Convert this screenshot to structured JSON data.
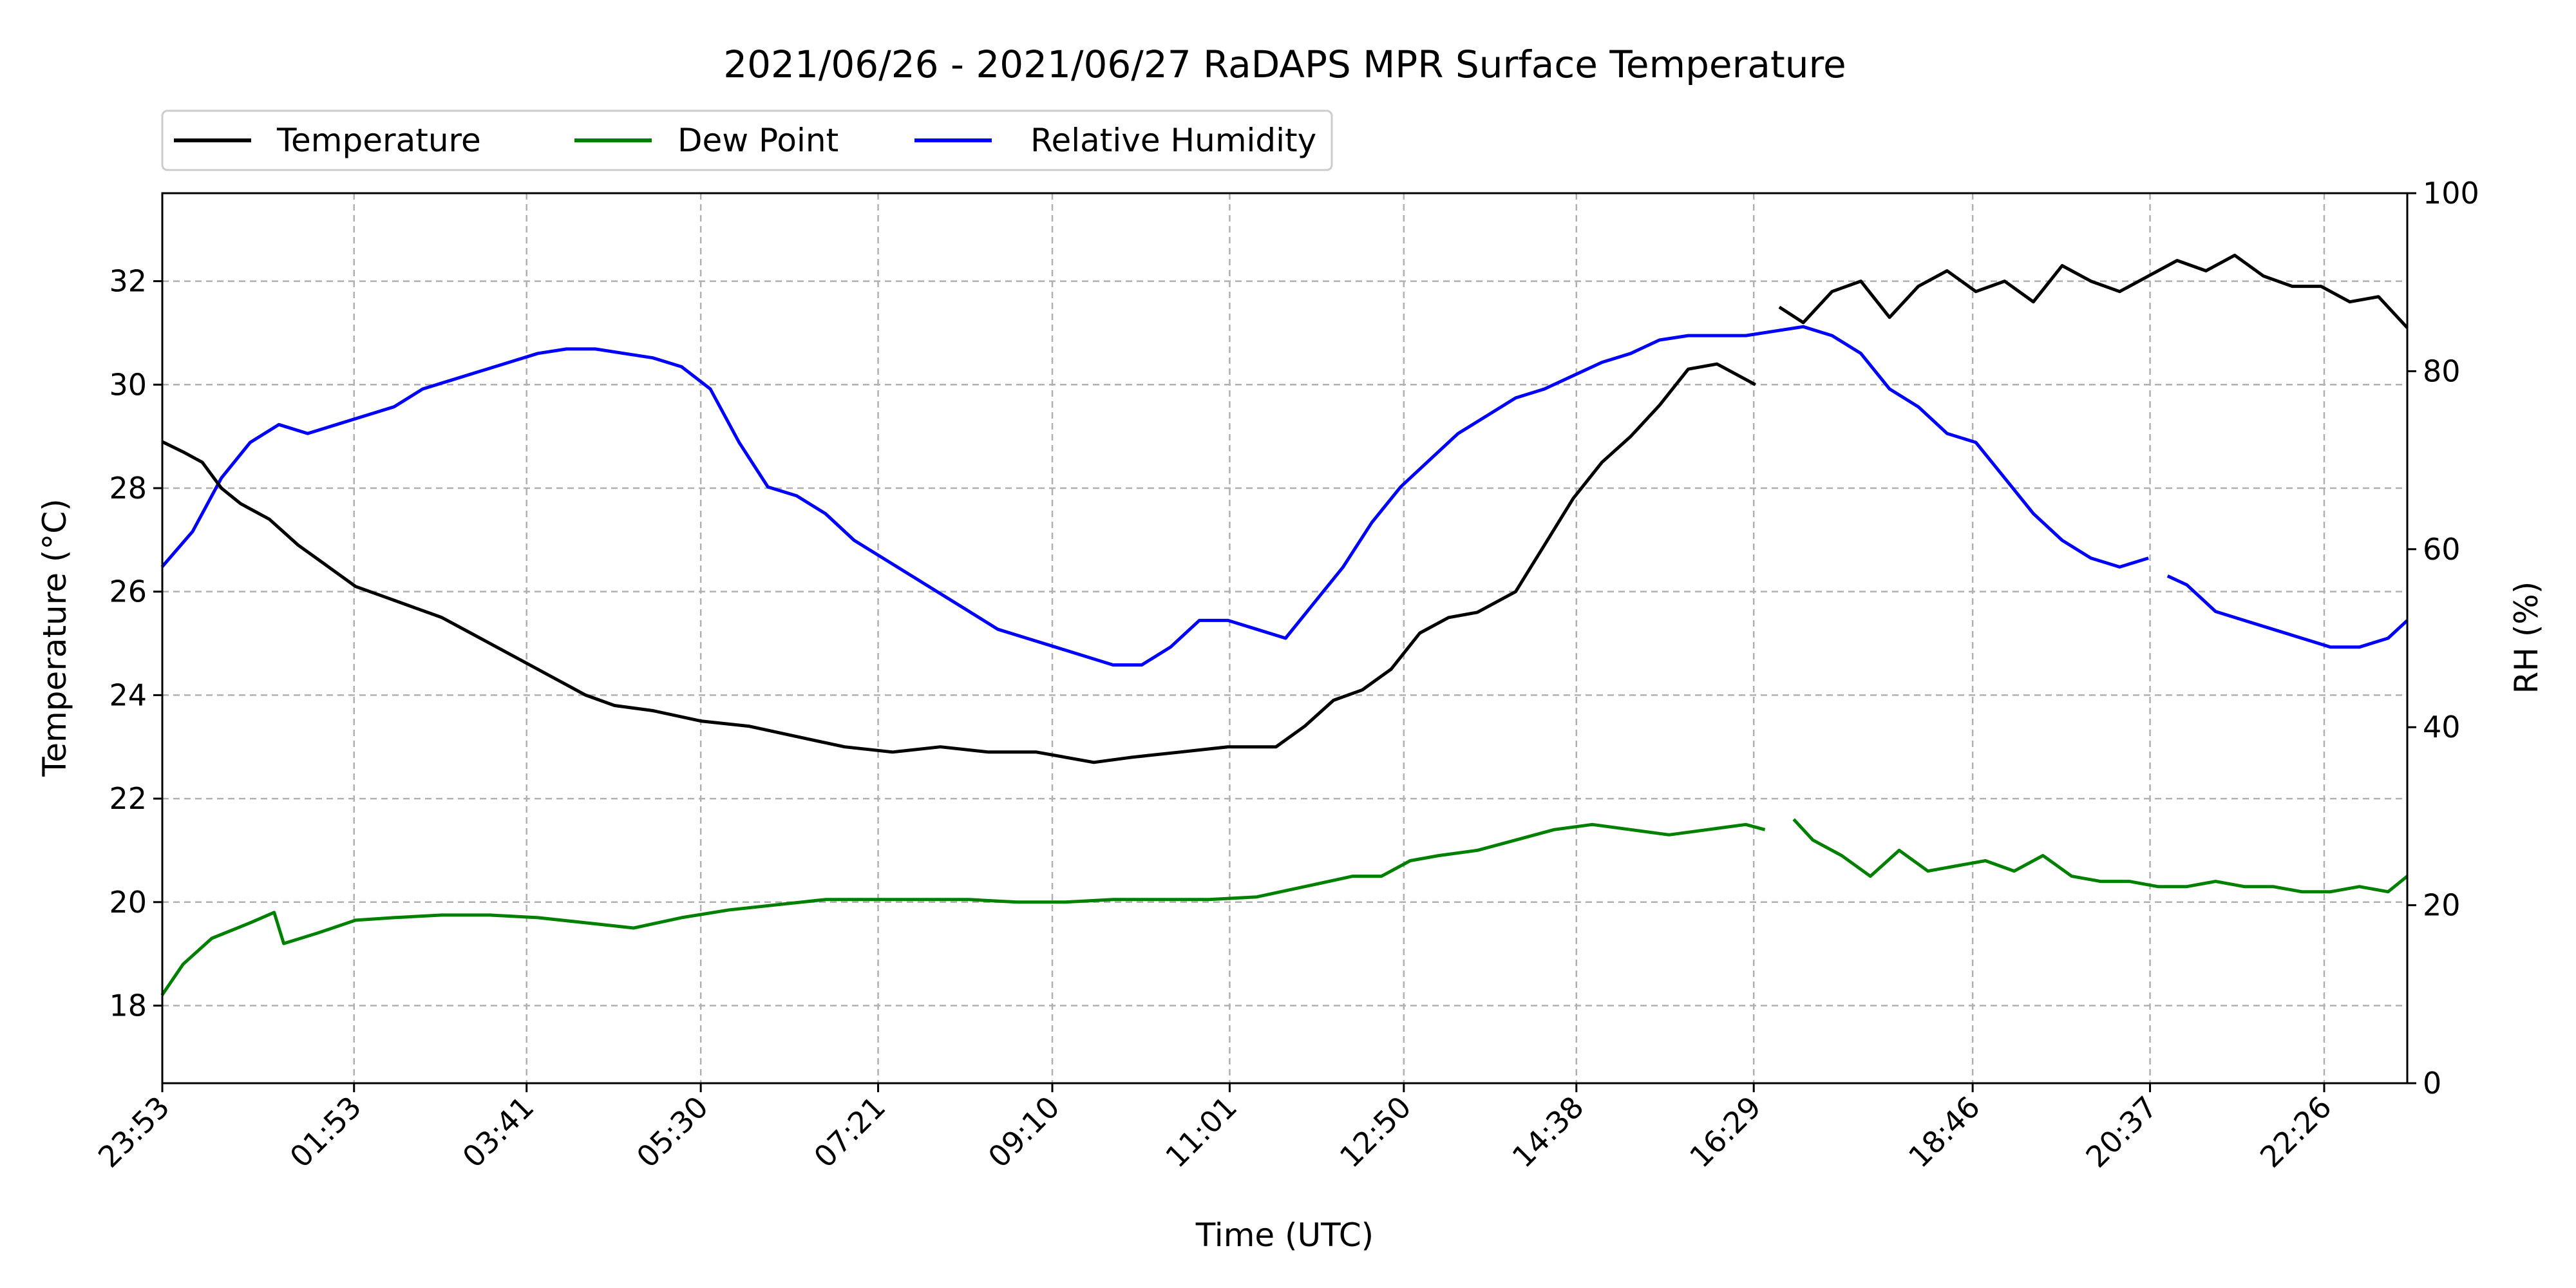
{
  "chart_data": {
    "type": "line",
    "title": "2021/06/26 - 2021/06/27 RaDAPS MPR Surface Temperature",
    "xlabel": "Time (UTC)",
    "ylabel": "Temperature ($^\\circ$C)",
    "y2label": "RH (%)",
    "x_ticks": [
      "23:53",
      "01:53",
      "03:41",
      "05:30",
      "07:21",
      "09:10",
      "11:01",
      "12:50",
      "14:38",
      "16:29",
      "18:46",
      "20:37",
      "22:26"
    ],
    "x_tick_hours": [
      -0.1167,
      1.8833,
      3.6833,
      5.5,
      7.35,
      9.1667,
      11.0167,
      12.8333,
      14.6333,
      16.4833,
      18.7667,
      20.6167,
      22.4333
    ],
    "xlim_hours": [
      -0.1167,
      23.3
    ],
    "ylim": [
      16.5,
      33.7
    ],
    "y_ticks": [
      18,
      20,
      22,
      24,
      26,
      28,
      30,
      32
    ],
    "y2lim": [
      0,
      100
    ],
    "y2_ticks": [
      0,
      20,
      40,
      60,
      80,
      100
    ],
    "grid": true,
    "legend": "top-left, above plot",
    "series": [
      {
        "name": "Temperature",
        "axis": "left",
        "color": "#000000",
        "x_hours": [
          -0.12,
          0.1,
          0.3,
          0.5,
          0.7,
          1.0,
          1.3,
          1.6,
          1.9,
          2.2,
          2.5,
          2.8,
          3.1,
          3.4,
          3.7,
          4.0,
          4.3,
          4.6,
          5.0,
          5.5,
          6.0,
          6.5,
          7.0,
          7.5,
          8.0,
          8.5,
          9.0,
          9.3,
          9.6,
          10.0,
          10.5,
          11.0,
          11.5,
          11.8,
          12.1,
          12.4,
          12.7,
          13.0,
          13.3,
          13.6,
          14.0,
          14.3,
          14.6,
          14.9,
          15.2,
          15.5,
          15.8,
          16.1,
          16.3,
          16.5
        ],
        "values": [
          28.9,
          28.7,
          28.5,
          28.0,
          27.7,
          27.4,
          26.9,
          26.5,
          26.1,
          25.9,
          25.7,
          25.5,
          25.2,
          24.9,
          24.6,
          24.3,
          24.0,
          23.8,
          23.7,
          23.5,
          23.4,
          23.2,
          23.0,
          22.9,
          23.0,
          22.9,
          22.9,
          22.8,
          22.7,
          22.8,
          22.9,
          23.0,
          23.0,
          23.4,
          23.9,
          24.1,
          24.5,
          25.2,
          25.5,
          25.6,
          26.0,
          26.9,
          27.8,
          28.5,
          29.0,
          29.6,
          30.3,
          30.4,
          30.2,
          30.0
        ],
        "segment2_x_hours": [
          16.75,
          17.0,
          17.3,
          17.6,
          17.9,
          18.2,
          18.5,
          18.8,
          19.1,
          19.4,
          19.7,
          20.0,
          20.3,
          20.6,
          20.9,
          21.2,
          21.5,
          21.8,
          22.1,
          22.4,
          22.7,
          23.0,
          23.3
        ],
        "segment2_values": [
          31.5,
          31.2,
          31.8,
          32.0,
          31.3,
          31.9,
          32.2,
          31.8,
          32.0,
          31.6,
          32.3,
          32.0,
          31.8,
          32.1,
          32.4,
          32.2,
          32.5,
          32.1,
          31.9,
          31.9,
          31.6,
          31.7,
          31.1
        ]
      },
      {
        "name": "Dew Point",
        "axis": "left",
        "color": "#008000",
        "x_hours": [
          -0.12,
          0.1,
          0.4,
          0.8,
          1.05,
          1.15,
          1.5,
          1.9,
          2.3,
          2.8,
          3.3,
          3.8,
          4.3,
          4.8,
          5.3,
          5.8,
          6.3,
          6.8,
          7.3,
          7.8,
          8.3,
          8.8,
          9.3,
          9.8,
          10.3,
          10.8,
          11.3,
          11.8,
          12.3,
          12.6,
          12.9,
          13.2,
          13.6,
          14.0,
          14.4,
          14.8,
          15.2,
          15.6,
          16.0,
          16.4,
          16.6
        ],
        "values": [
          18.2,
          18.8,
          19.3,
          19.6,
          19.8,
          19.2,
          19.4,
          19.65,
          19.7,
          19.75,
          19.75,
          19.7,
          19.6,
          19.5,
          19.7,
          19.85,
          19.95,
          20.05,
          20.05,
          20.05,
          20.05,
          20.0,
          20.0,
          20.05,
          20.05,
          20.05,
          20.1,
          20.3,
          20.5,
          20.5,
          20.8,
          20.9,
          21.0,
          21.2,
          21.4,
          21.5,
          21.4,
          21.3,
          21.4,
          21.5,
          21.4
        ],
        "segment2_x_hours": [
          16.9,
          17.1,
          17.4,
          17.7,
          18.0,
          18.3,
          18.6,
          18.9,
          19.2,
          19.5,
          19.8,
          20.1,
          20.4,
          20.7,
          21.0,
          21.3,
          21.6,
          21.9,
          22.2,
          22.5,
          22.8,
          23.1,
          23.3
        ],
        "segment2_values": [
          21.6,
          21.2,
          20.9,
          20.5,
          21.0,
          20.6,
          20.7,
          20.8,
          20.6,
          20.9,
          20.5,
          20.4,
          20.4,
          20.3,
          20.3,
          20.4,
          20.3,
          20.3,
          20.2,
          20.2,
          20.3,
          20.2,
          20.5
        ]
      },
      {
        "name": "Relative Humidity",
        "axis": "right",
        "color": "#0000ff",
        "x_hours": [
          -0.12,
          0.2,
          0.5,
          0.8,
          1.1,
          1.4,
          1.7,
          2.0,
          2.3,
          2.6,
          2.9,
          3.2,
          3.5,
          3.8,
          4.1,
          4.4,
          4.7,
          5.0,
          5.3,
          5.6,
          5.9,
          6.2,
          6.5,
          6.8,
          7.1,
          7.4,
          7.7,
          8.0,
          8.3,
          8.6,
          8.9,
          9.2,
          9.5,
          9.8,
          10.1,
          10.4,
          10.7,
          11.0,
          11.3,
          11.6,
          11.9,
          12.2,
          12.5,
          12.8,
          13.1,
          13.4,
          13.7,
          14.0,
          14.3,
          14.6,
          14.9,
          15.2,
          15.5,
          15.8,
          16.1,
          16.4,
          16.7,
          17.0,
          17.3,
          17.6,
          17.9,
          18.2,
          18.5,
          18.8,
          19.1,
          19.4,
          19.7,
          20.0,
          20.3,
          20.6
        ],
        "values": [
          58,
          62,
          68,
          72,
          74,
          73,
          74,
          75,
          76,
          78,
          79,
          80,
          81,
          82,
          82.5,
          82.5,
          82,
          81.5,
          80.5,
          78,
          72,
          67,
          66,
          64,
          61,
          59,
          57,
          55,
          53,
          51,
          50,
          49,
          48,
          47,
          47,
          49,
          52,
          52,
          51,
          50,
          54,
          58,
          63,
          67,
          70,
          73,
          75,
          77,
          78,
          79.5,
          81,
          82,
          83.5,
          84,
          84,
          84,
          84.5,
          85,
          84,
          82,
          78,
          76,
          73,
          72,
          68,
          64,
          61,
          59,
          58,
          59
        ],
        "segment2_x_hours": [
          20.8,
          21.0,
          21.3,
          21.6,
          21.9,
          22.2,
          22.5,
          22.8,
          23.1,
          23.3
        ],
        "segment2_values": [
          57,
          56,
          53,
          52,
          51,
          50,
          49,
          49,
          50,
          52
        ]
      }
    ]
  }
}
